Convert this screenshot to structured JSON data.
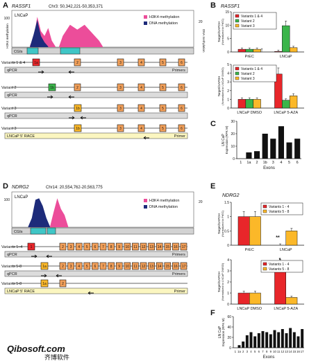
{
  "panelA": {
    "letter": "A",
    "gene": "RASSF1",
    "locus": "Chr3: 50,342,221-50,353,371",
    "cell": "LNCaP",
    "legend": [
      "H3K4 methylation",
      "DNA methylation"
    ],
    "y_left_label": "H3K4 methylation",
    "y_left_tick": "100",
    "y_right_label": "DNA methylation",
    "y_right_tick": "20",
    "cgis": "CGIs",
    "rows": [
      {
        "label": "Variants 1 & 4",
        "sub": "qPCR",
        "first": "1a"
      },
      {
        "label": "Variant 2",
        "sub": "qPCR",
        "first": "1b"
      },
      {
        "label": "Variant 3",
        "sub": "qPCR",
        "first": "1b"
      },
      {
        "label": "Variant 3",
        "sub": "LNCaP 5' RACE",
        "first": "1b"
      }
    ],
    "exons": [
      "2",
      "3",
      "4",
      "5",
      "6"
    ],
    "primers": "Primers",
    "primer": "Primer"
  },
  "panelB": {
    "letter": "B",
    "gene": "RASSF1",
    "legend": [
      "Variants 1 & 4",
      "Variant 2",
      "Variant 3"
    ],
    "colors": [
      "#e8262a",
      "#3ab54a",
      "#fbb829"
    ],
    "top": {
      "ylabel_1": "Target/GAPDH",
      "ylabel_2": "(Normalized to PrEC)",
      "yticks": [
        "0",
        "5",
        "10",
        "15"
      ],
      "categories": [
        "PrEC",
        "LNCaP"
      ],
      "values": [
        [
          1,
          1,
          1
        ],
        [
          0.2,
          9.8,
          1.6
        ]
      ],
      "marker": "†"
    },
    "bottom": {
      "ylabel_1": "Target/GAPDH",
      "ylabel_2": "(Normalized to LNCaP DMSO)",
      "yticks": [
        "0",
        "1",
        "2",
        "3",
        "4",
        "5"
      ],
      "categories": [
        "LNCaP DMSO",
        "LNCaP 5-AZA"
      ],
      "values": [
        [
          1,
          1,
          1
        ],
        [
          3.9,
          0.9,
          1.4
        ]
      ]
    }
  },
  "panelC": {
    "letter": "C",
    "ylabel_1": "LN CaP",
    "ylabel_2": "Expression (RPK M)",
    "xlabel": "Exons",
    "yticks": [
      "0",
      "10",
      "20",
      "30"
    ],
    "categories": [
      "1",
      "1a",
      "2",
      "1b",
      "3",
      "4",
      "5",
      "6"
    ],
    "values": [
      0,
      5,
      6,
      20,
      16,
      26,
      13,
      16
    ]
  },
  "panelD": {
    "letter": "D",
    "gene": "NDRG2",
    "locus": "Chr14: 20,554,762-20,563,775",
    "cell": "LNCaP",
    "legend": [
      "H3K4 methylation",
      "DNA methylation"
    ],
    "y_left_tick": "100",
    "y_right_tick": "20",
    "cgis": "CGIs",
    "rows": [
      {
        "label": "Variants 1–4",
        "sub": "qPCR",
        "first": "1"
      },
      {
        "label": "Variants 5-8",
        "sub": "qPCR",
        "first": "1a"
      },
      {
        "label": "Variants 5-8",
        "sub": "LNCaP 5' RACE",
        "first": "1a"
      }
    ],
    "exons": [
      "2",
      "3",
      "4",
      "5",
      "6",
      "7",
      "8",
      "9",
      "10",
      "11",
      "12",
      "13",
      "14",
      "15",
      "16",
      "17"
    ],
    "primers": "Primers",
    "primer": "Primer"
  },
  "panelE": {
    "letter": "E",
    "gene": "NDRG2",
    "legend": [
      "Variants 1 - 4",
      "Variants 5 - 8"
    ],
    "colors": [
      "#e8262a",
      "#fbb829"
    ],
    "top": {
      "ylabel_1": "Target/GAPDH",
      "ylabel_2": "(Normalized to PrEC)",
      "yticks": [
        "0",
        "0.5",
        "1",
        "1.5"
      ],
      "categories": [
        "PrEC",
        "LNCaP"
      ],
      "values": [
        [
          1.0,
          1.0
        ],
        [
          0.0,
          0.5
        ]
      ],
      "marker": "**"
    },
    "bottom": {
      "ylabel_1": "Target/GAPDH",
      "ylabel_2": "(Normalized to LNCaP DMSO)",
      "yticks": [
        "0",
        "1",
        "2",
        "3",
        "4"
      ],
      "categories": [
        "LNCaP DMSO",
        "LNCaP 5-AZA"
      ],
      "values": [
        [
          1.0,
          1.0
        ],
        [
          3.4,
          0.6
        ]
      ],
      "marker": "*"
    }
  },
  "panelF": {
    "letter": "F",
    "ylabel_1": "LN CaP",
    "ylabel_2": "Expression (RPK M)",
    "xlabel": "Exons",
    "yticks": [
      "0",
      "20",
      "40",
      "60"
    ],
    "categories": [
      "1",
      "1a",
      "2",
      "3",
      "4",
      "5",
      "6",
      "7",
      "8",
      "9",
      "10",
      "11",
      "12",
      "13",
      "14",
      "15",
      "16",
      "17"
    ],
    "values": [
      0,
      5,
      12,
      24,
      30,
      22,
      28,
      32,
      30,
      26,
      34,
      30,
      36,
      28,
      38,
      30,
      22,
      36
    ]
  },
  "watermark": "Qibosoft.com 齐博软件"
}
